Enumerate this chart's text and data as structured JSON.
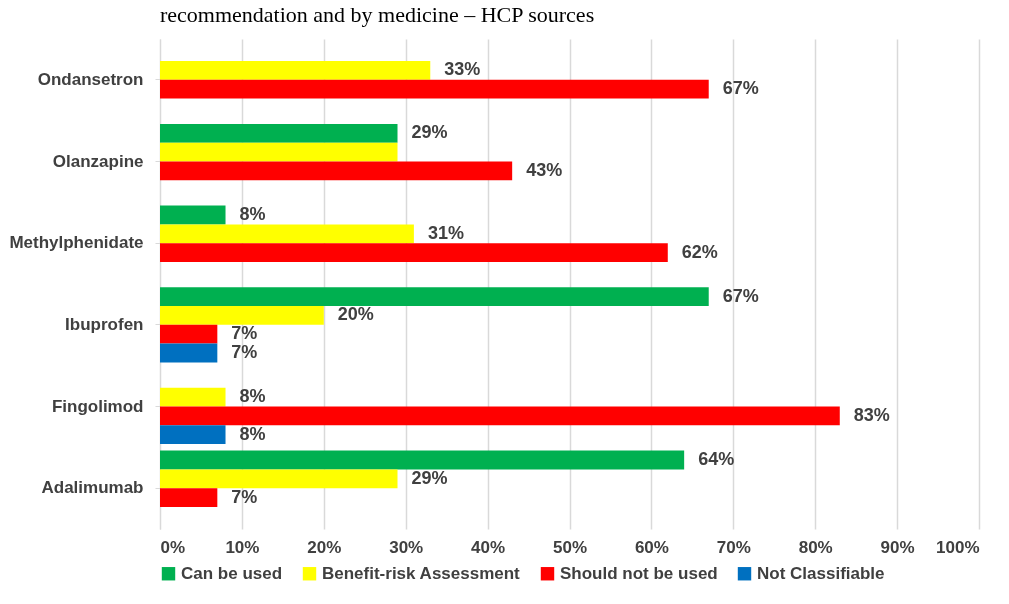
{
  "chart_data": {
    "type": "bar",
    "orientation": "horizontal",
    "title": "recommendation and by medicine – HCP sources",
    "categories": [
      "Ondansetron",
      "Olanzapine",
      "Methylphenidate",
      "Ibuprofen",
      "Fingolimod",
      "Adalimumab"
    ],
    "series": [
      {
        "name": "Can be used",
        "color": "#00b050",
        "values": [
          null,
          29,
          8,
          67,
          null,
          64
        ],
        "value_labels": [
          null,
          "29%",
          "8%",
          "67%",
          null,
          "64%"
        ]
      },
      {
        "name": "Benefit-risk Assessment",
        "color": "#ffff00",
        "values": [
          33,
          29,
          31,
          20,
          8,
          29
        ],
        "value_labels": [
          "33%",
          null,
          "31%",
          "20%",
          "8%",
          "29%"
        ]
      },
      {
        "name": "Should not be used",
        "color": "#ff0000",
        "values": [
          67,
          43,
          62,
          7,
          83,
          7
        ],
        "value_labels": [
          "67%",
          "43%",
          "62%",
          "7%",
          "83%",
          "7%"
        ]
      },
      {
        "name": "Not Classifiable",
        "color": "#0070c0",
        "values": [
          null,
          null,
          null,
          7,
          8,
          null
        ],
        "value_labels": [
          null,
          null,
          null,
          "7%",
          "8%",
          null
        ]
      }
    ],
    "xlim": [
      0,
      100
    ],
    "xticks": [
      {
        "value": 0,
        "label": "0%"
      },
      {
        "value": 10,
        "label": "10%"
      },
      {
        "value": 20,
        "label": "20%"
      },
      {
        "value": 30,
        "label": "30%"
      },
      {
        "value": 40,
        "label": "40%"
      },
      {
        "value": 50,
        "label": "50%"
      },
      {
        "value": 60,
        "label": "60%"
      },
      {
        "value": 70,
        "label": "70%"
      },
      {
        "value": 80,
        "label": "80%"
      },
      {
        "value": 90,
        "label": "90%"
      },
      {
        "value": 100,
        "label": "100%"
      }
    ],
    "grid": "x",
    "legend": "bottom"
  }
}
